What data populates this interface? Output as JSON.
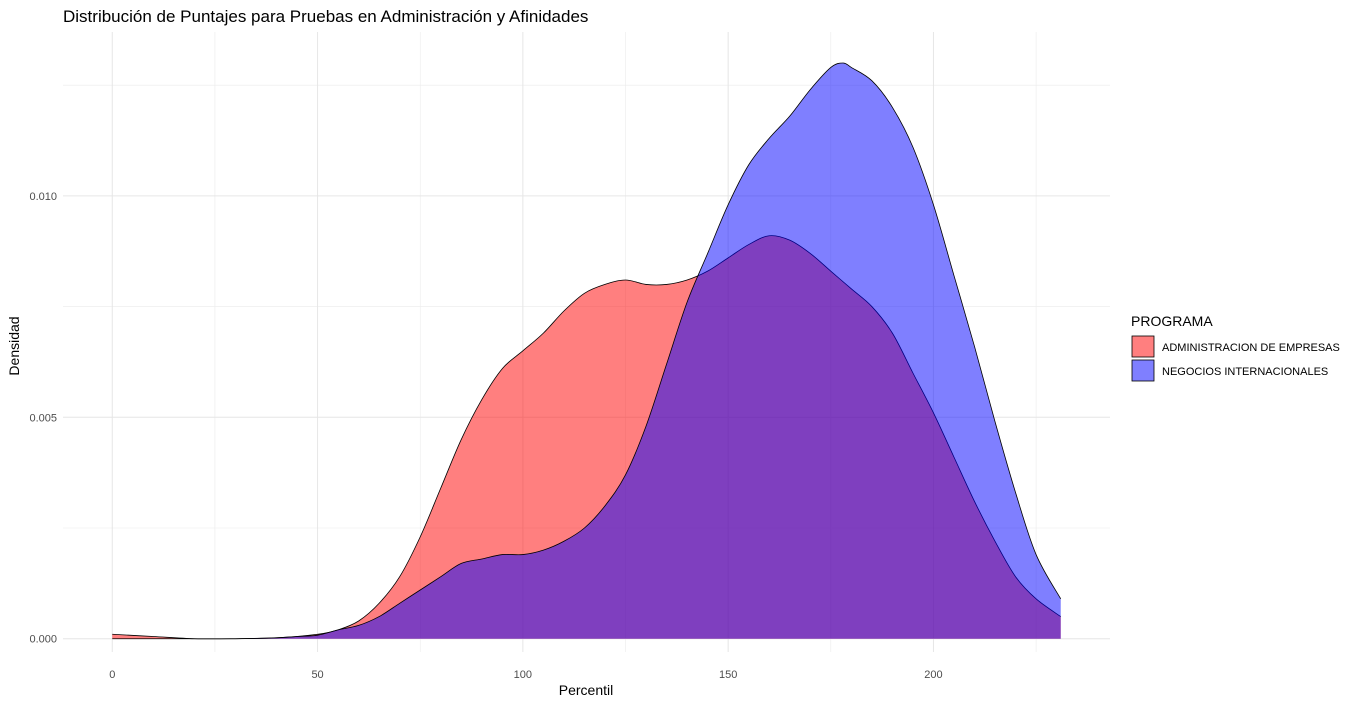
{
  "chart_data": {
    "type": "area",
    "title": "Distribución de Puntajes para Pruebas en Administración y Afinidades",
    "xlabel": "Percentil",
    "ylabel": "Densidad",
    "xlim": [
      -12,
      243
    ],
    "ylim": [
      -0.0003,
      0.0137
    ],
    "x_ticks": [
      0,
      50,
      100,
      150,
      200
    ],
    "x_tick_labels": [
      "0",
      "50",
      "100",
      "150",
      "200"
    ],
    "y_ticks": [
      0.0,
      0.005,
      0.01
    ],
    "y_tick_labels": [
      "0.000",
      "0.005",
      "0.010"
    ],
    "grid": true,
    "legend": {
      "title": "PROGRAMA",
      "position": "right",
      "entries": [
        "ADMINISTRACION DE EMPRESAS",
        "NEGOCIOS INTERNACIONALES"
      ]
    },
    "series": [
      {
        "name": "ADMINISTRACION DE EMPRESAS",
        "color": "#ff0000",
        "opacity": 0.5,
        "x": [
          0,
          10,
          20,
          30,
          40,
          50,
          55,
          60,
          65,
          70,
          75,
          80,
          85,
          90,
          95,
          100,
          105,
          110,
          115,
          120,
          125,
          130,
          135,
          140,
          145,
          150,
          155,
          160,
          165,
          170,
          175,
          180,
          185,
          190,
          195,
          200,
          205,
          210,
          215,
          220,
          225,
          231
        ],
        "y": [
          0.0001,
          5e-05,
          0.0,
          0.0,
          2e-05,
          0.0001,
          0.0002,
          0.0004,
          0.0008,
          0.0014,
          0.0023,
          0.0034,
          0.0045,
          0.0054,
          0.0061,
          0.0065,
          0.0069,
          0.0074,
          0.0078,
          0.008,
          0.0081,
          0.008,
          0.008,
          0.0081,
          0.0083,
          0.0086,
          0.0089,
          0.0091,
          0.009,
          0.0087,
          0.0083,
          0.0079,
          0.0075,
          0.0069,
          0.006,
          0.0051,
          0.0041,
          0.0031,
          0.0022,
          0.0014,
          0.0009,
          0.0005
        ]
      },
      {
        "name": "NEGOCIOS INTERNACIONALES",
        "color": "#0000ff",
        "opacity": 0.5,
        "x": [
          0,
          10,
          20,
          30,
          40,
          45,
          50,
          55,
          60,
          65,
          70,
          75,
          80,
          85,
          90,
          95,
          100,
          105,
          110,
          115,
          120,
          125,
          130,
          135,
          140,
          145,
          150,
          155,
          160,
          165,
          170,
          175,
          178,
          180,
          185,
          190,
          195,
          200,
          205,
          210,
          215,
          220,
          225,
          231
        ],
        "y": [
          0.0,
          0.0,
          0.0,
          0.0,
          2e-05,
          5e-05,
          8e-05,
          0.0002,
          0.0003,
          0.0005,
          0.0008,
          0.0011,
          0.0014,
          0.0017,
          0.0018,
          0.0019,
          0.0019,
          0.002,
          0.0022,
          0.0025,
          0.003,
          0.0037,
          0.0048,
          0.0062,
          0.0076,
          0.0087,
          0.0098,
          0.0107,
          0.0113,
          0.0118,
          0.0124,
          0.0129,
          0.013,
          0.0129,
          0.0126,
          0.012,
          0.0111,
          0.0098,
          0.0082,
          0.0066,
          0.0049,
          0.0033,
          0.0019,
          0.0009
        ]
      }
    ]
  }
}
